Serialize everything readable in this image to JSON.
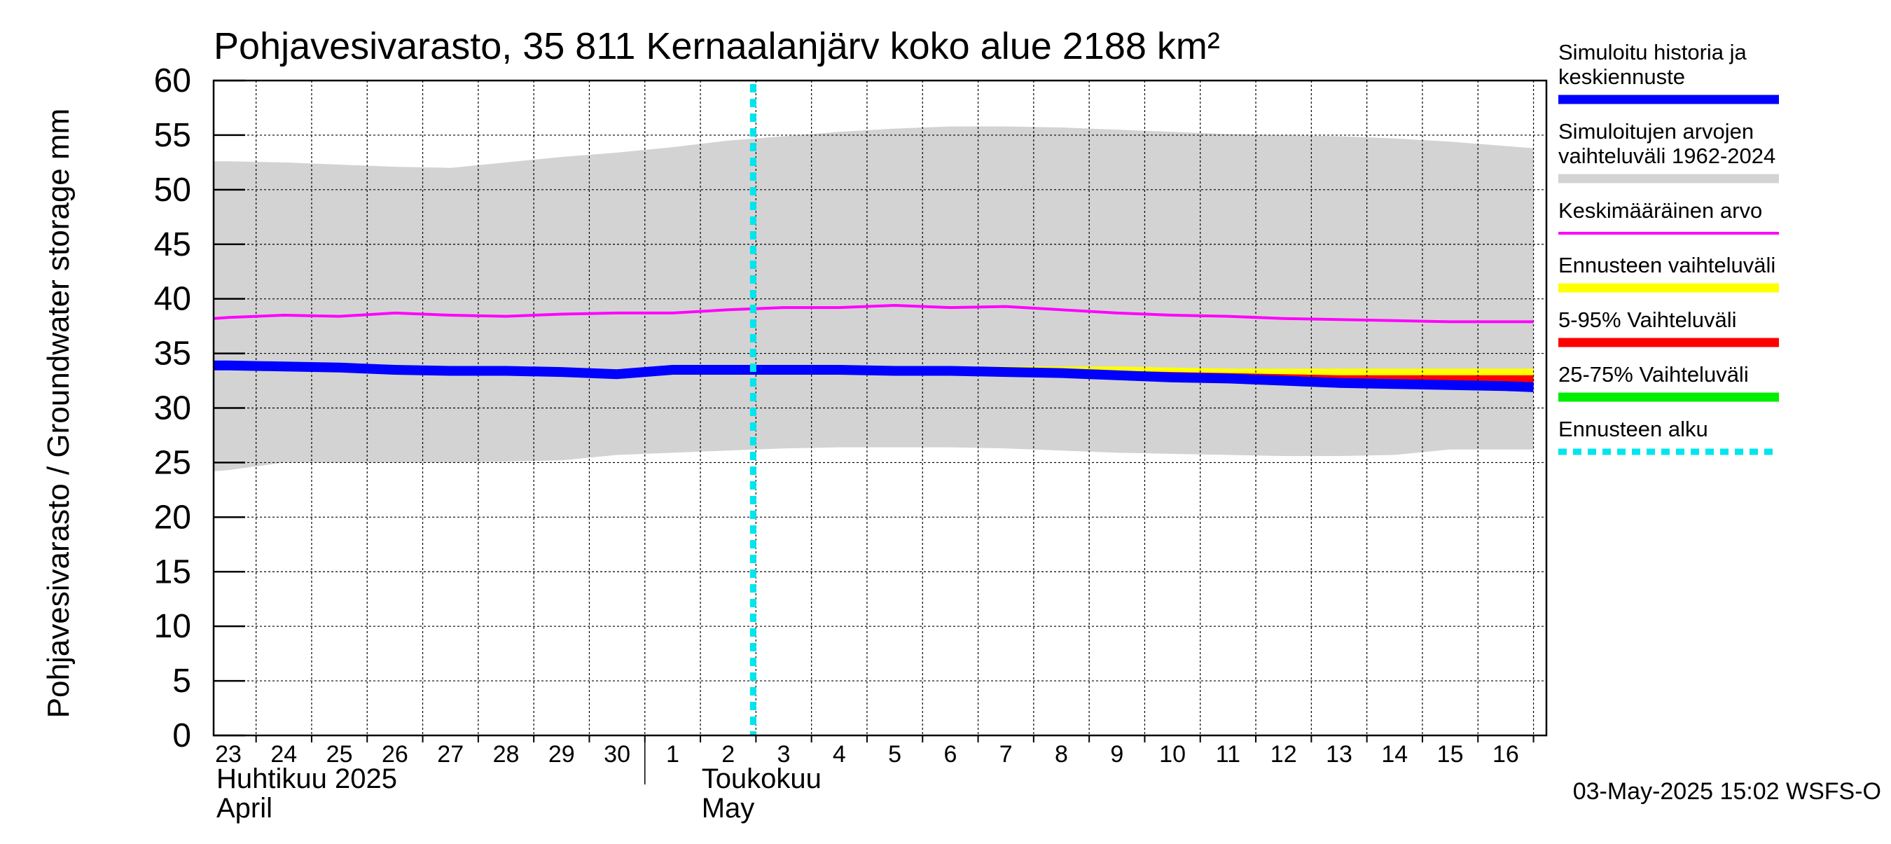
{
  "chart_data": {
    "type": "area",
    "title": "Pohjavesivarasto, 35 811 Kernaalanjärv koko alue 2188 km²",
    "ylabel": "Pohjavesivarasto / Groundwater storage   mm",
    "ylim": [
      0,
      60
    ],
    "yticks": [
      0,
      5,
      10,
      15,
      20,
      25,
      30,
      35,
      40,
      45,
      50,
      55,
      60
    ],
    "grid": true,
    "legend_position": "right",
    "x_day_labels": [
      "23",
      "24",
      "25",
      "26",
      "27",
      "28",
      "29",
      "30",
      "1",
      "2",
      "3",
      "4",
      "5",
      "6",
      "7",
      "8",
      "9",
      "10",
      "11",
      "12",
      "13",
      "14",
      "15",
      "16"
    ],
    "month_labels": [
      {
        "fi": "Huhtikuu  2025",
        "en": "April"
      },
      {
        "fi": "Toukokuu",
        "en": "May"
      }
    ],
    "forecast_start": "3",
    "footer": "03-May-2025 15:02 WSFS-O",
    "colors": {
      "history": "#0000ff",
      "range_hist": "#d3d3d3",
      "mean": "#ff00ff",
      "forecast_range": "#ffff00",
      "p5_95": "#ff0000",
      "p25_75": "#00ee00",
      "forecast_start": "#00e5ee"
    },
    "legend": [
      {
        "label": "Simuloitu historia ja keskiennuste",
        "lines": [
          "Simuloitu historia ja",
          "keskiennuste"
        ],
        "color": "#0000ff",
        "style": "thick"
      },
      {
        "label": "Simuloitujen arvojen vaihteluväli 1962-2024",
        "lines": [
          "Simuloitujen arvojen",
          "vaihteluväli 1962-2024"
        ],
        "color": "#d3d3d3",
        "style": "thick"
      },
      {
        "label": "Keskimääräinen arvo",
        "lines": [
          "Keskimääräinen arvo"
        ],
        "color": "#ff00ff",
        "style": "thin"
      },
      {
        "label": "Ennusteen vaihteluväli",
        "lines": [
          "Ennusteen vaihteluväli"
        ],
        "color": "#ffff00",
        "style": "thick"
      },
      {
        "label": "5-95% Vaihteluväli",
        "lines": [
          "5-95% Vaihteluväli"
        ],
        "color": "#ff0000",
        "style": "thick"
      },
      {
        "label": "25-75% Vaihteluväli",
        "lines": [
          "25-75% Vaihteluväli"
        ],
        "color": "#00ee00",
        "style": "thick"
      },
      {
        "label": "Ennusteen alku",
        "lines": [
          "Ennusteen alku"
        ],
        "color": "#00e5ee",
        "style": "dashed"
      }
    ],
    "series": {
      "range_upper": {
        "x": [
          -0.5,
          0,
          1,
          2,
          3,
          4,
          5,
          6,
          7,
          8,
          9,
          10,
          11,
          12,
          13,
          14,
          15,
          16,
          17,
          18,
          19,
          20,
          21,
          22,
          23,
          23.5
        ],
        "y": [
          52.6,
          52.6,
          52.5,
          52.3,
          52.1,
          52.0,
          52.5,
          53.0,
          53.4,
          53.9,
          54.5,
          54.9,
          55.3,
          55.6,
          55.8,
          55.8,
          55.7,
          55.5,
          55.3,
          55.1,
          55.0,
          54.9,
          54.7,
          54.4,
          54.0,
          53.8
        ]
      },
      "range_lower": {
        "x": [
          -0.5,
          0,
          1,
          2,
          3,
          4,
          5,
          6,
          7,
          8,
          9,
          10,
          11,
          12,
          13,
          14,
          15,
          16,
          17,
          18,
          19,
          20,
          21,
          22,
          23,
          23.5
        ],
        "y": [
          24.2,
          24.3,
          25.0,
          25.0,
          25.0,
          25.0,
          25.1,
          25.2,
          25.7,
          25.9,
          26.1,
          26.3,
          26.4,
          26.4,
          26.4,
          26.3,
          26.1,
          25.9,
          25.8,
          25.7,
          25.6,
          25.6,
          25.7,
          26.2,
          26.2,
          26.2
        ]
      },
      "mean": {
        "x": [
          -0.5,
          0,
          1,
          2,
          3,
          4,
          5,
          6,
          7,
          8,
          9,
          10,
          11,
          12,
          13,
          14,
          15,
          16,
          17,
          18,
          19,
          20,
          21,
          22,
          23,
          23.5
        ],
        "y": [
          38.2,
          38.3,
          38.5,
          38.4,
          38.7,
          38.5,
          38.4,
          38.6,
          38.7,
          38.7,
          39.0,
          39.2,
          39.2,
          39.4,
          39.2,
          39.3,
          39.0,
          38.7,
          38.5,
          38.4,
          38.2,
          38.1,
          38.0,
          37.9,
          37.9,
          37.9
        ]
      },
      "history": {
        "x": [
          -0.5,
          0,
          1,
          2,
          3,
          4,
          5,
          6,
          7,
          8,
          9,
          10,
          10.5
        ],
        "y": [
          33.9,
          33.9,
          33.8,
          33.7,
          33.5,
          33.4,
          33.4,
          33.3,
          33.1,
          33.5,
          33.5,
          33.5,
          33.5
        ]
      },
      "forecast_median": {
        "x": [
          10.5,
          11,
          12,
          13,
          14,
          15,
          16,
          17,
          18,
          19,
          20,
          21,
          22,
          23,
          23.5
        ],
        "y": [
          33.5,
          33.5,
          33.4,
          33.4,
          33.3,
          33.2,
          33.0,
          32.8,
          32.7,
          32.5,
          32.3,
          32.2,
          32.1,
          32.0,
          31.9
        ]
      },
      "forecast_range_upper": {
        "x": [
          10.5,
          11,
          12,
          13,
          14,
          15,
          16,
          17,
          18,
          19,
          20,
          21,
          22,
          23,
          23.5
        ],
        "y": [
          33.5,
          33.6,
          33.7,
          33.8,
          33.8,
          33.8,
          33.8,
          33.7,
          33.6,
          33.6,
          33.6,
          33.6,
          33.6,
          33.6,
          33.6
        ]
      },
      "forecast_range_lower": {
        "x": [
          10.5,
          11,
          12,
          13,
          14,
          15,
          16,
          17,
          18,
          19,
          20,
          21,
          22,
          23,
          23.5
        ],
        "y": [
          33.5,
          33.5,
          33.4,
          33.3,
          33.2,
          33.0,
          32.9,
          32.7,
          32.5,
          32.3,
          32.1,
          32.0,
          31.9,
          31.8,
          31.7
        ]
      },
      "p95": {
        "x": [
          10.5,
          11,
          12,
          13,
          14,
          15,
          16,
          17,
          18,
          19,
          20,
          21,
          22,
          23,
          23.5
        ],
        "y": [
          33.5,
          33.5,
          33.6,
          33.6,
          33.6,
          33.5,
          33.4,
          33.3,
          33.2,
          33.1,
          33.0,
          33.0,
          33.0,
          33.0,
          33.0
        ]
      },
      "p5": {
        "x": [
          10.5,
          11,
          12,
          13,
          14,
          15,
          16,
          17,
          18,
          19,
          20,
          21,
          22,
          23,
          23.5
        ],
        "y": [
          33.5,
          33.5,
          33.4,
          33.3,
          33.2,
          33.0,
          32.9,
          32.7,
          32.5,
          32.3,
          32.2,
          32.1,
          32.0,
          31.9,
          31.8
        ]
      },
      "p75": {
        "x": [
          10.5,
          11,
          12,
          13,
          14,
          15,
          16,
          17,
          18,
          19,
          20,
          21,
          22,
          23,
          23.5
        ],
        "y": [
          33.5,
          33.5,
          33.5,
          33.5,
          33.4,
          33.3,
          33.1,
          32.9,
          32.8,
          32.7,
          32.5,
          32.4,
          32.3,
          32.2,
          32.1
        ]
      },
      "p25": {
        "x": [
          10.5,
          11,
          12,
          13,
          14,
          15,
          16,
          17,
          18,
          19,
          20,
          21,
          22,
          23,
          23.5
        ],
        "y": [
          33.5,
          33.5,
          33.4,
          33.4,
          33.3,
          33.2,
          33.0,
          32.8,
          32.7,
          32.5,
          32.3,
          32.2,
          32.1,
          32.0,
          31.9
        ]
      }
    }
  }
}
